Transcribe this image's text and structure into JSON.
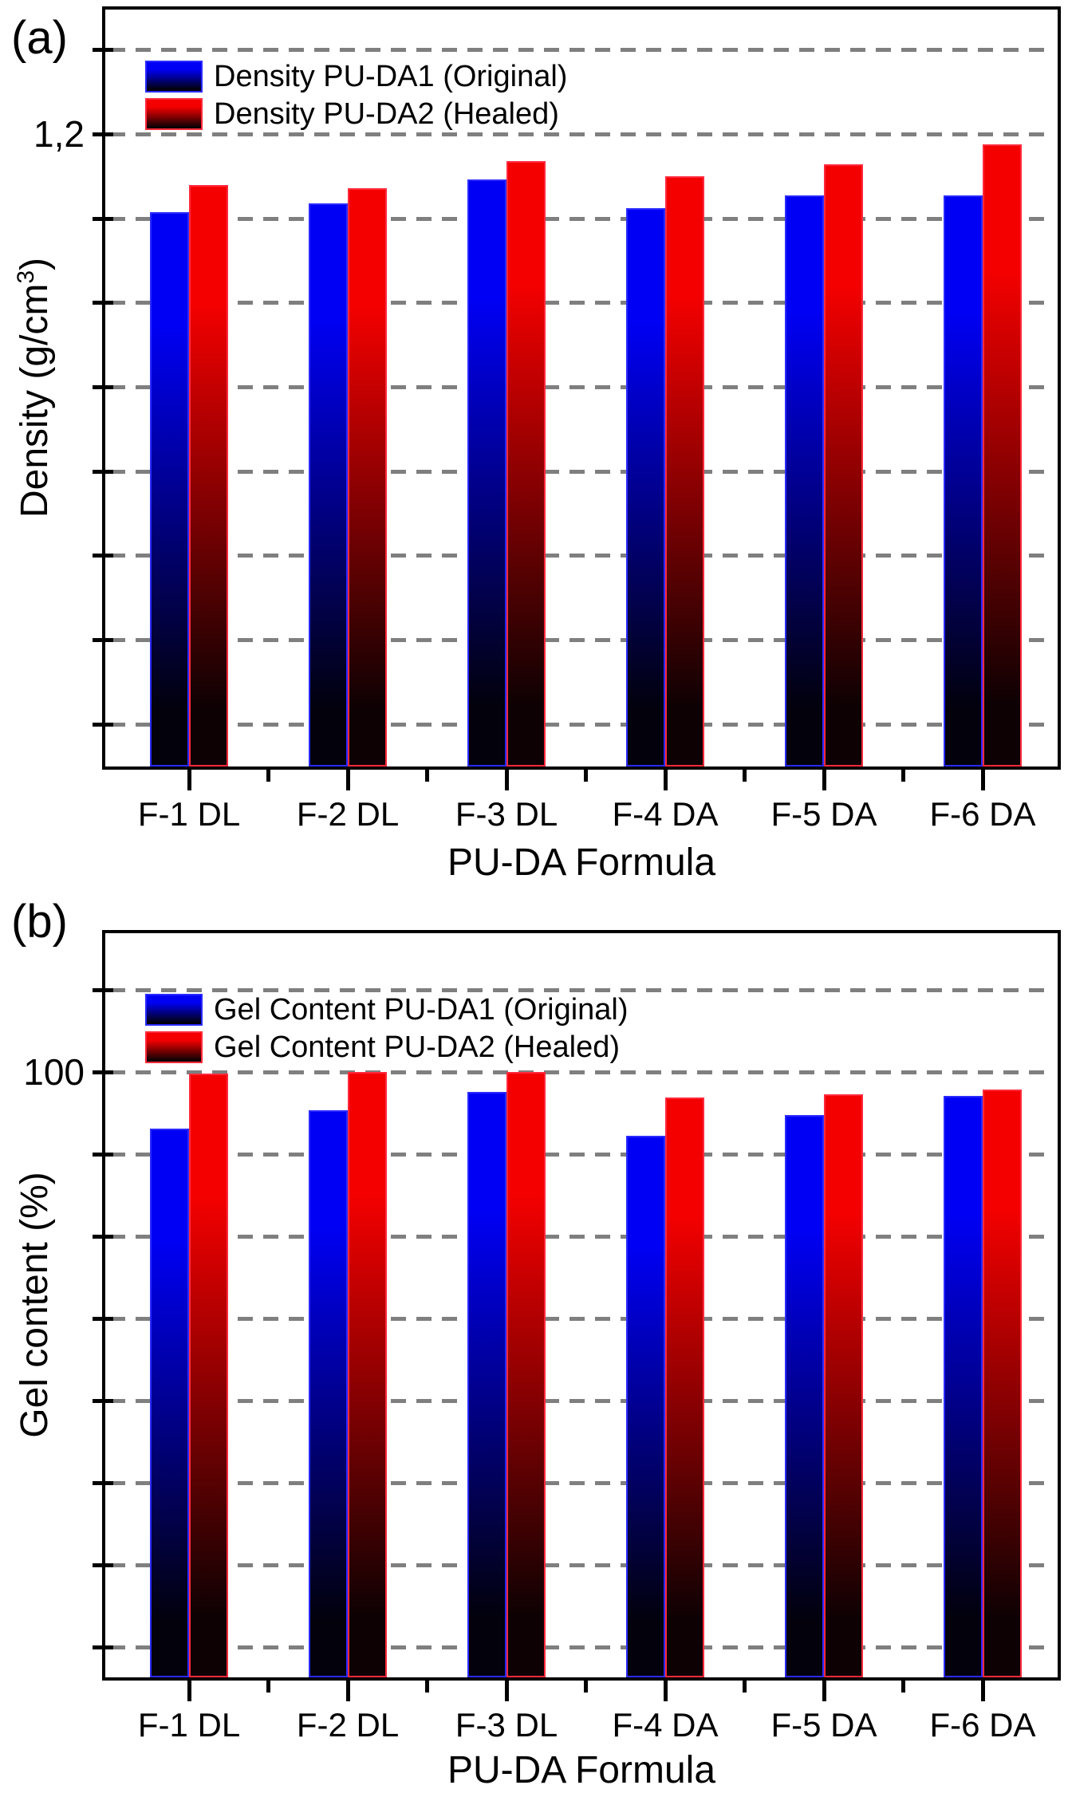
{
  "style": {
    "background": "#ffffff",
    "axis_color": "#000000",
    "grid_color": "#7f7f7f",
    "text_color": "#000000"
  },
  "chart_data": [
    {
      "type": "bar",
      "panel_label": "(a)",
      "xlabel": "PU-DA Formula",
      "ylabel_parts": {
        "prefix": "Density (g/cm",
        "sup": "3",
        "suffix": ")"
      },
      "categories": [
        "F-1 DL",
        "F-2 DL",
        "F-3 DL",
        "F-4 DA",
        "F-5 DA",
        "F-6 DA"
      ],
      "series": [
        {
          "name": "Density PU-DA1 (Original)",
          "color": "#0000f5",
          "border": "#2a2aff",
          "dark": "#02010c",
          "values": [
            1.154,
            1.159,
            1.173,
            1.156,
            1.164,
            1.164
          ]
        },
        {
          "name": "Density PU-DA2 (Healed)",
          "color": "#f50000",
          "border": "#ff2a3c",
          "dark": "#0e0103",
          "values": [
            1.17,
            1.168,
            1.184,
            1.175,
            1.182,
            1.194
          ]
        }
      ],
      "ylim": [
        0.825,
        1.274
      ],
      "yticks": [
        0.85,
        0.9,
        0.95,
        1.0,
        1.05,
        1.1,
        1.15,
        1.2,
        1.25
      ],
      "ytick_labels": {
        "1.2": "1,2"
      },
      "grid": "dashed-horizontal",
      "legend_position": "top-left-inside"
    },
    {
      "type": "bar",
      "panel_label": "(b)",
      "xlabel": "PU-DA Formula",
      "ylabel_parts": {
        "prefix": "Gel content (%)",
        "sup": "",
        "suffix": ""
      },
      "categories": [
        "F-1 DL",
        "F-2 DL",
        "F-3 DL",
        "F-4 DA",
        "F-5 DA",
        "F-6 DA"
      ],
      "series": [
        {
          "name": "Gel Content PU-DA1 (Original)",
          "color": "#0000f5",
          "border": "#2a2aff",
          "dark": "#02010c",
          "values": [
            93.1,
            95.4,
            97.6,
            92.3,
            94.8,
            97.1
          ]
        },
        {
          "name": "Gel Content PU-DA2 (Healed)",
          "color": "#f50000",
          "border": "#ff2a3c",
          "dark": "#0e0103",
          "values": [
            99.8,
            100.0,
            100.0,
            96.9,
            97.3,
            97.9
          ]
        }
      ],
      "ylim": [
        26.4,
        116.9
      ],
      "yticks": [
        30,
        40,
        50,
        60,
        70,
        80,
        90,
        100,
        110
      ],
      "ytick_labels": {
        "100": "100"
      },
      "grid": "dashed-horizontal",
      "legend_position": "top-left-inside"
    }
  ]
}
